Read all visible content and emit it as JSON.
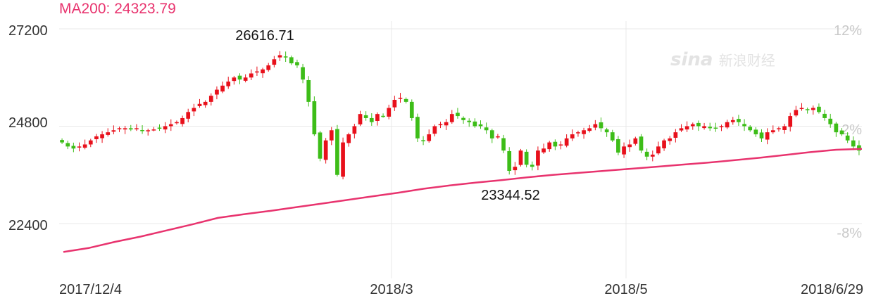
{
  "ma_label": "MA200: 24323.79",
  "watermark": {
    "brand": "sina",
    "cn": "新浪财经"
  },
  "colors": {
    "up": "#e8101b",
    "down": "#3dbd18",
    "ma": "#e8336e",
    "grid": "#e8e8e8",
    "text": "#333333",
    "pct_text": "#c9c9c9"
  },
  "chart_data": {
    "type": "candlestick",
    "y_ticks": [
      "27200",
      "24800",
      "22400"
    ],
    "y_tick_values": [
      27200,
      24800,
      22400
    ],
    "pct_ticks": [
      "12%",
      "2%",
      "-8%"
    ],
    "x_ticks": [
      "2017/12/4",
      "2018/3",
      "2018/5",
      "2018/6/29"
    ],
    "ylim": [
      21700,
      27400
    ],
    "annotations": [
      {
        "text": "26616.71",
        "value": 26616.71,
        "kind": "high"
      },
      {
        "text": "23344.52",
        "value": 23344.52,
        "kind": "low"
      }
    ],
    "ma200": {
      "name": "MA200",
      "values": [
        21700,
        21800,
        21950,
        22080,
        22230,
        22380,
        22540,
        22630,
        22710,
        22800,
        22890,
        22980,
        23070,
        23160,
        23260,
        23340,
        23410,
        23470,
        23540,
        23600,
        23650,
        23700,
        23750,
        23800,
        23850,
        23900,
        23960,
        24020,
        24090,
        24160,
        24220,
        24240
      ]
    },
    "closes": [
      24400,
      24300,
      24250,
      24300,
      24350,
      24450,
      24550,
      24600,
      24650,
      24700,
      24750,
      24750,
      24720,
      24750,
      24700,
      24700,
      24720,
      24750,
      24800,
      24850,
      24900,
      25000,
      25150,
      25250,
      25350,
      25400,
      25550,
      25700,
      25800,
      25900,
      26000,
      25950,
      26000,
      26100,
      26150,
      26200,
      26300,
      26450,
      26550,
      26500,
      26350,
      26300,
      25950,
      25400,
      24600,
      24000,
      24450,
      24700,
      23600,
      24400,
      24600,
      24800,
      25100,
      25000,
      24900,
      25100,
      25050,
      25250,
      25450,
      25500,
      25400,
      25000,
      24500,
      24450,
      24600,
      24800,
      24850,
      24900,
      25100,
      25050,
      24950,
      24900,
      24800,
      24800,
      24700,
      24500,
      24550,
      24200,
      23700,
      23800,
      24200,
      23850,
      23800,
      24200,
      24250,
      24400,
      24300,
      24350,
      24500,
      24600,
      24650,
      24700,
      24750,
      24850,
      24750,
      24650,
      24450,
      24150,
      24300,
      24350,
      24500,
      24200,
      24050,
      24100,
      24300,
      24450,
      24500,
      24650,
      24750,
      24800,
      24850,
      24800,
      24800,
      24750,
      24750,
      24800,
      24900,
      24950,
      24900,
      24800,
      24700,
      24600,
      24500,
      24650,
      24700,
      24750,
      24800,
      25050,
      25200,
      25250,
      25200,
      25250,
      25150,
      25000,
      24850,
      24650,
      24600,
      24450,
      24300,
      24200
    ]
  }
}
